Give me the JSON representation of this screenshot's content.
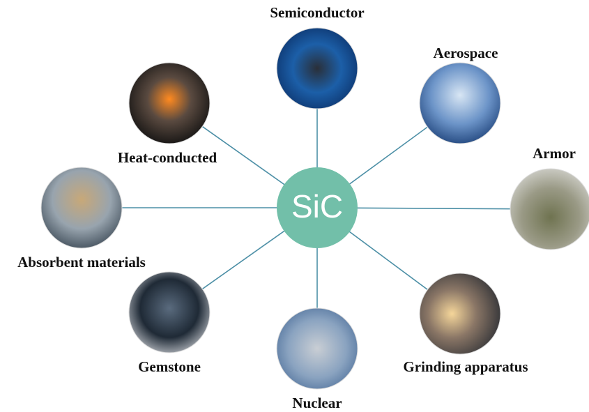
{
  "center": {
    "label": "SiC"
  },
  "nodes": [
    {
      "label": "Semiconductor"
    },
    {
      "label": "Aerospace"
    },
    {
      "label": "Armor"
    },
    {
      "label": "Grinding apparatus"
    },
    {
      "label": "Nuclear"
    },
    {
      "label": "Gemstone"
    },
    {
      "label": "Absorbent materials"
    },
    {
      "label": "Heat-conducted"
    }
  ]
}
